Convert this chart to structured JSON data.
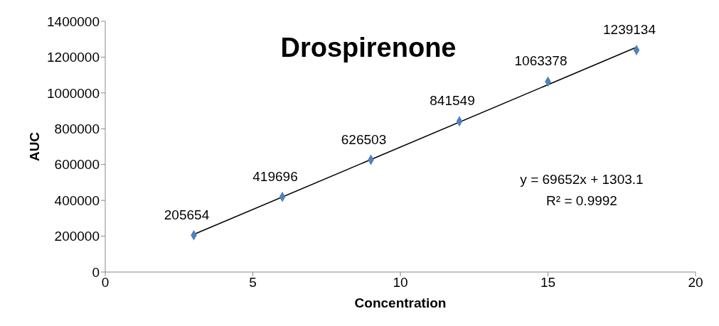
{
  "chart_data": {
    "type": "scatter",
    "title": "Drospirenone",
    "xlabel": "Concentration",
    "ylabel": "AUC",
    "xlim": [
      0,
      20
    ],
    "xticks": [
      0,
      5,
      10,
      15,
      20
    ],
    "ylim": [
      0,
      1400000
    ],
    "yticks": [
      0,
      200000,
      400000,
      600000,
      800000,
      1000000,
      1200000,
      1400000
    ],
    "series": [
      {
        "color": "#4f81bd",
        "marker": "diamond",
        "x": [
          3,
          6,
          9,
          12,
          15,
          18
        ],
        "values": [
          205654,
          419696,
          626503,
          841549,
          1063378,
          1239134
        ],
        "value_labels": [
          "205654",
          "419696",
          "626503",
          "841549",
          "1063378",
          "1239134"
        ]
      },
      {
        "type": "line",
        "color": "#000000",
        "marker": "none",
        "line_style": "solid",
        "x": [
          3,
          18
        ],
        "values": [
          210000,
          1255000
        ]
      }
    ],
    "grid": false,
    "legend": false,
    "annotations": [
      "y = 69652x + 1303.1",
      "R² = 0.9992"
    ]
  }
}
